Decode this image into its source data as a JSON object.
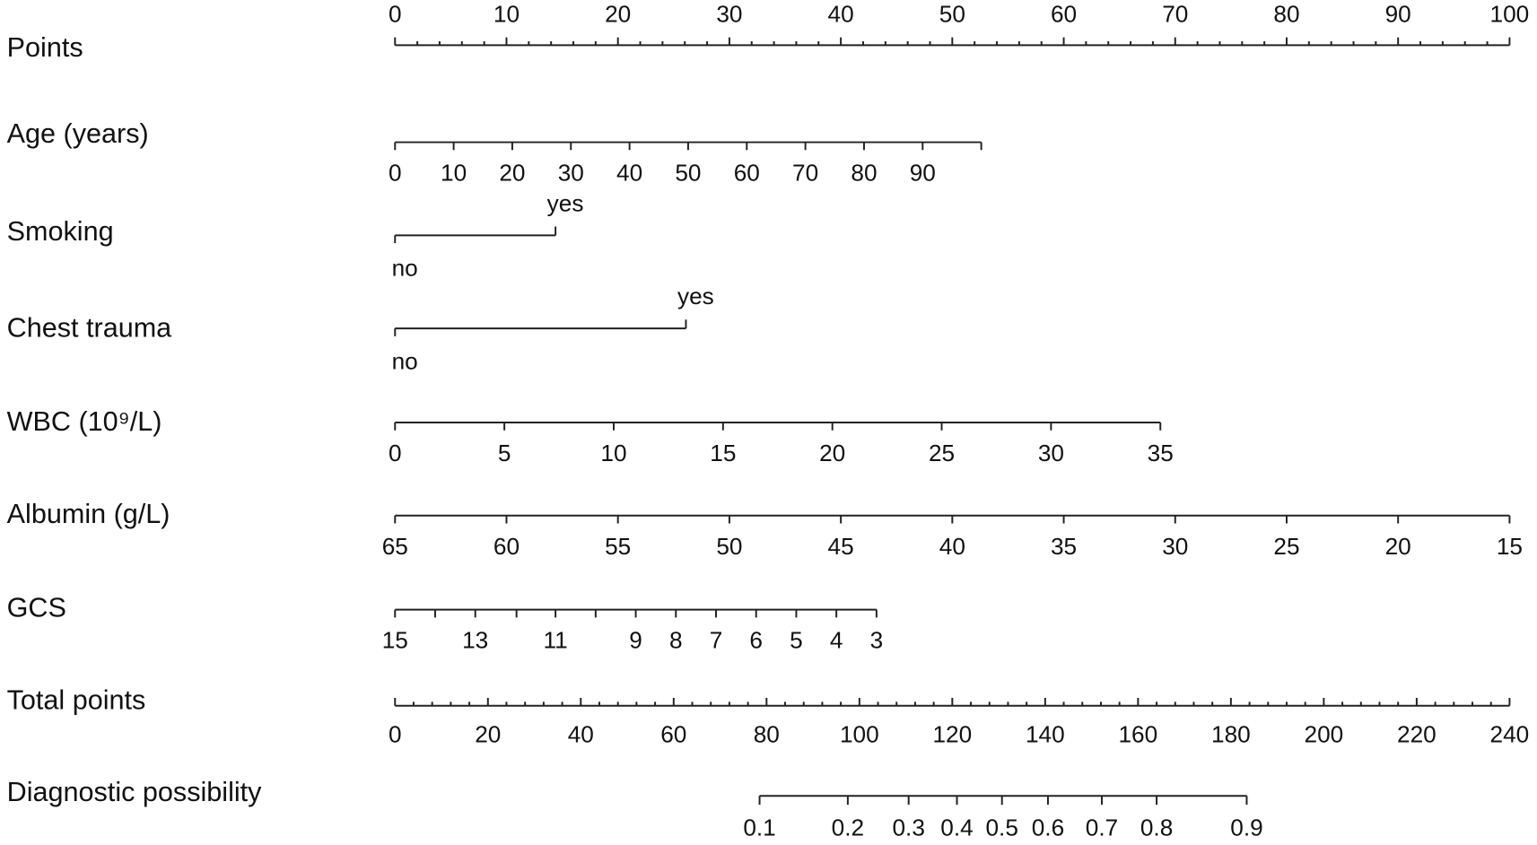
{
  "chart_data": {
    "type": "nomogram",
    "points_axis": {
      "label": "Points",
      "xlim": [
        0,
        100
      ],
      "xticks": [
        0,
        10,
        20,
        30,
        40,
        50,
        60,
        70,
        80,
        90,
        100
      ],
      "minor_xticks": [
        2,
        4,
        6,
        8,
        12,
        14,
        16,
        18,
        22,
        24,
        26,
        28,
        32,
        34,
        36,
        38,
        42,
        44,
        46,
        48,
        52,
        54,
        56,
        58,
        62,
        64,
        66,
        68,
        72,
        74,
        76,
        78,
        82,
        84,
        86,
        88,
        92,
        94,
        96,
        98
      ]
    },
    "rows": [
      {
        "label": "Age (years)",
        "labels": [
          0,
          10,
          20,
          30,
          40,
          50,
          60,
          70,
          80,
          90,
          null
        ],
        "points": [
          0,
          5.26,
          10.52,
          15.78,
          21.04,
          26.3,
          31.56,
          36.82,
          42.08,
          47.34,
          52.6
        ]
      },
      {
        "label": "Smoking",
        "labels": [
          "no",
          "yes"
        ],
        "points": [
          0,
          14.4
        ]
      },
      {
        "label": "Chest trauma",
        "labels": [
          "no",
          "yes"
        ],
        "points": [
          0,
          26.1
        ]
      },
      {
        "label": "WBC (10⁹/L)",
        "labels": [
          0,
          5,
          10,
          15,
          20,
          25,
          30,
          35
        ],
        "points": [
          0,
          9.81,
          19.62,
          29.43,
          39.24,
          49.05,
          58.86,
          68.67
        ]
      },
      {
        "label": "Albumin (g/L)",
        "labels": [
          65,
          60,
          55,
          50,
          45,
          40,
          35,
          30,
          25,
          20,
          15
        ],
        "points": [
          0,
          10,
          20,
          30,
          40,
          50,
          60,
          70,
          80,
          90,
          100
        ]
      },
      {
        "label": "GCS",
        "labels": [
          15,
          null,
          13,
          null,
          11,
          null,
          9,
          8,
          7,
          6,
          5,
          4,
          3
        ],
        "points": [
          0,
          3.6,
          7.2,
          10.9,
          14.4,
          18.0,
          21.6,
          25.2,
          28.8,
          32.4,
          36.0,
          39.6,
          43.2
        ]
      }
    ],
    "total_axis": {
      "label": "Total points",
      "xlim": [
        0,
        240
      ],
      "xticks": [
        0,
        20,
        40,
        60,
        80,
        100,
        120,
        140,
        160,
        180,
        200,
        220,
        240
      ],
      "minor_xticks": [
        4,
        8,
        12,
        16,
        24,
        28,
        32,
        36,
        44,
        48,
        52,
        56,
        64,
        68,
        72,
        76,
        84,
        88,
        92,
        96,
        104,
        108,
        112,
        116,
        124,
        128,
        132,
        136,
        144,
        148,
        152,
        156,
        164,
        168,
        172,
        176,
        184,
        188,
        192,
        196,
        204,
        208,
        212,
        216,
        224,
        228,
        232,
        236
      ]
    },
    "probability": {
      "label": "Diagnostic possibility",
      "labels": [
        0.1,
        0.2,
        0.3,
        0.4,
        0.5,
        0.6,
        0.7,
        0.8,
        0.9
      ],
      "total_points": [
        78.5,
        97.5,
        110.6,
        121.0,
        130.7,
        140.6,
        152.2,
        164.0,
        183.4
      ]
    }
  }
}
